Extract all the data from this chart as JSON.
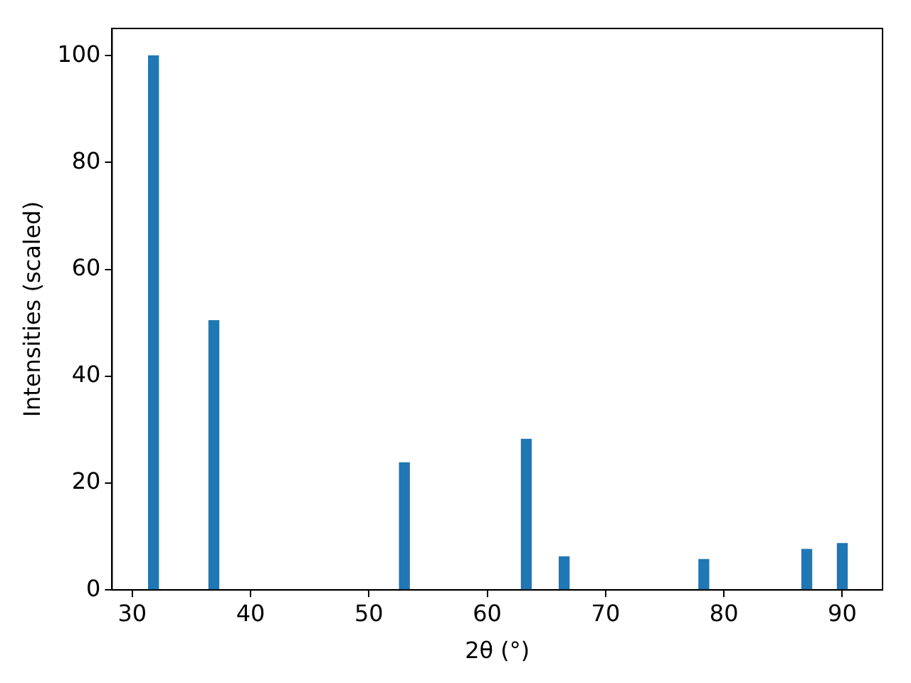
{
  "chart_data": {
    "type": "bar",
    "xlabel": "2θ (°)",
    "ylabel": "Intensities (scaled)",
    "x": [
      31.8,
      36.9,
      53.0,
      63.3,
      66.5,
      78.3,
      87.0,
      90.0
    ],
    "values": [
      100,
      50.4,
      23.8,
      28.2,
      6.2,
      5.7,
      7.6,
      8.7
    ],
    "color": "#1f77b4",
    "xlim": [
      28.3,
      93.4
    ],
    "xticks": [
      30,
      40,
      50,
      60,
      70,
      80,
      90
    ],
    "ylim": [
      0,
      105.1
    ],
    "yticks": [
      0,
      20,
      40,
      60,
      80,
      100
    ]
  }
}
